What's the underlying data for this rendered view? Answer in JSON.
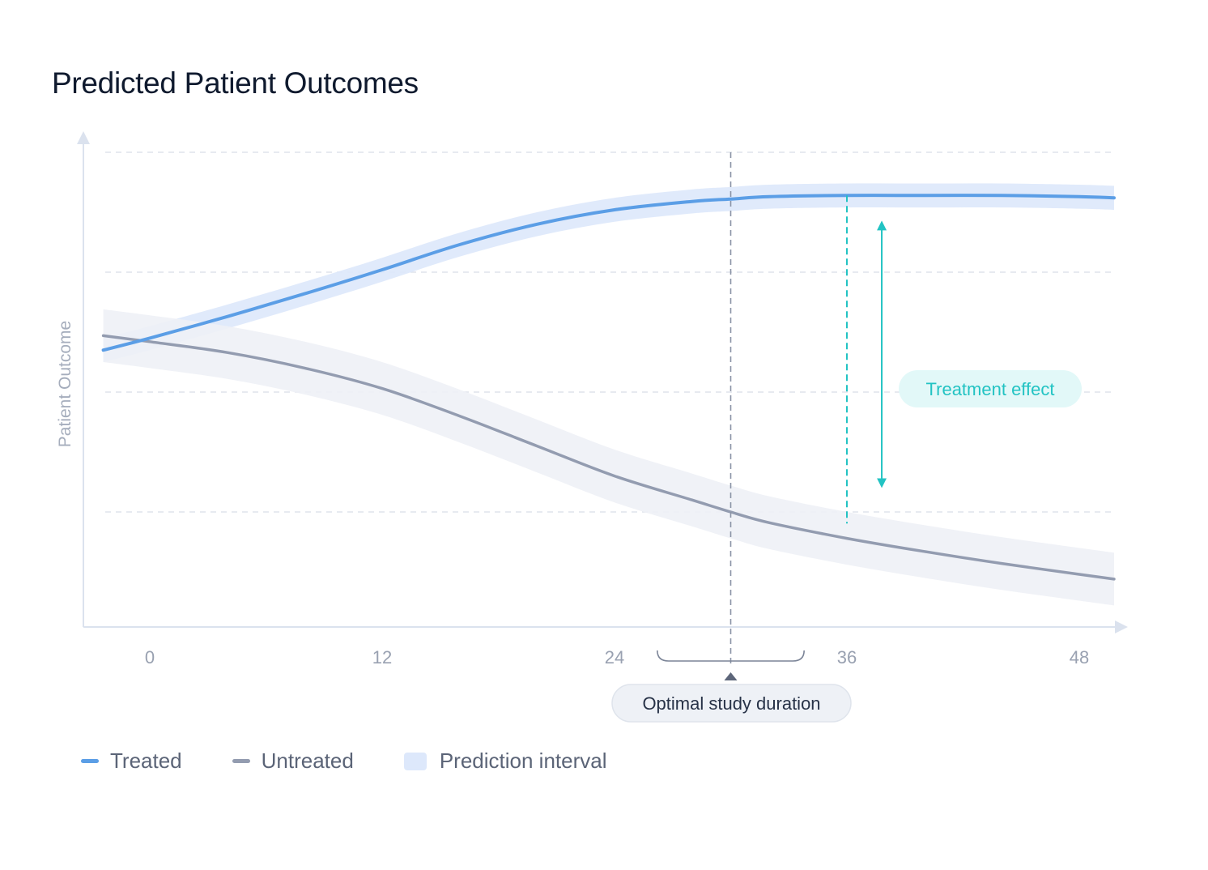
{
  "title": "Predicted Patient Outcomes",
  "chart_data": {
    "type": "line",
    "title": "Predicted Patient Outcomes",
    "xlabel": "",
    "ylabel": "Patient Outcome",
    "x_ticks": [
      0,
      12,
      24,
      36,
      48
    ],
    "xlim": [
      -3.5,
      50
    ],
    "ylim": [
      0,
      4
    ],
    "grid": true,
    "series": [
      {
        "name": "Treated",
        "color": "#5b9ee6",
        "x": [
          -2.4,
          0,
          4,
          8,
          12,
          16,
          20,
          24,
          28,
          30,
          32,
          36,
          40,
          44,
          48,
          49.8
        ],
        "y": [
          2.35,
          2.45,
          2.63,
          2.82,
          3.02,
          3.23,
          3.4,
          3.52,
          3.59,
          3.61,
          3.63,
          3.64,
          3.64,
          3.64,
          3.63,
          3.62
        ],
        "interval": 0.1
      },
      {
        "name": "Untreated",
        "color": "#939cb0",
        "x": [
          -2.4,
          0,
          4,
          8,
          12,
          16,
          20,
          24,
          28,
          30,
          32,
          36,
          40,
          44,
          48,
          49.8
        ],
        "y": [
          2.47,
          2.42,
          2.33,
          2.2,
          2.03,
          1.8,
          1.55,
          1.3,
          1.1,
          1.0,
          0.91,
          0.78,
          0.67,
          0.57,
          0.48,
          0.44
        ],
        "interval": 0.22
      }
    ],
    "annotations": [
      {
        "label": "Treatment effect",
        "x": 37.8,
        "y_from": 3.43,
        "y_to": 1.2,
        "color": "#22c3c3"
      },
      {
        "label": "Optimal study duration",
        "x": 30,
        "range": [
          26,
          34
        ]
      }
    ],
    "legend": [
      {
        "label": "Treated",
        "kind": "line",
        "color": "#5b9ee6"
      },
      {
        "label": "Untreated",
        "kind": "line",
        "color": "#939cb0"
      },
      {
        "label": "Prediction interval",
        "kind": "band",
        "color": "#dde8fb"
      }
    ],
    "legend_position": "bottom-left"
  }
}
